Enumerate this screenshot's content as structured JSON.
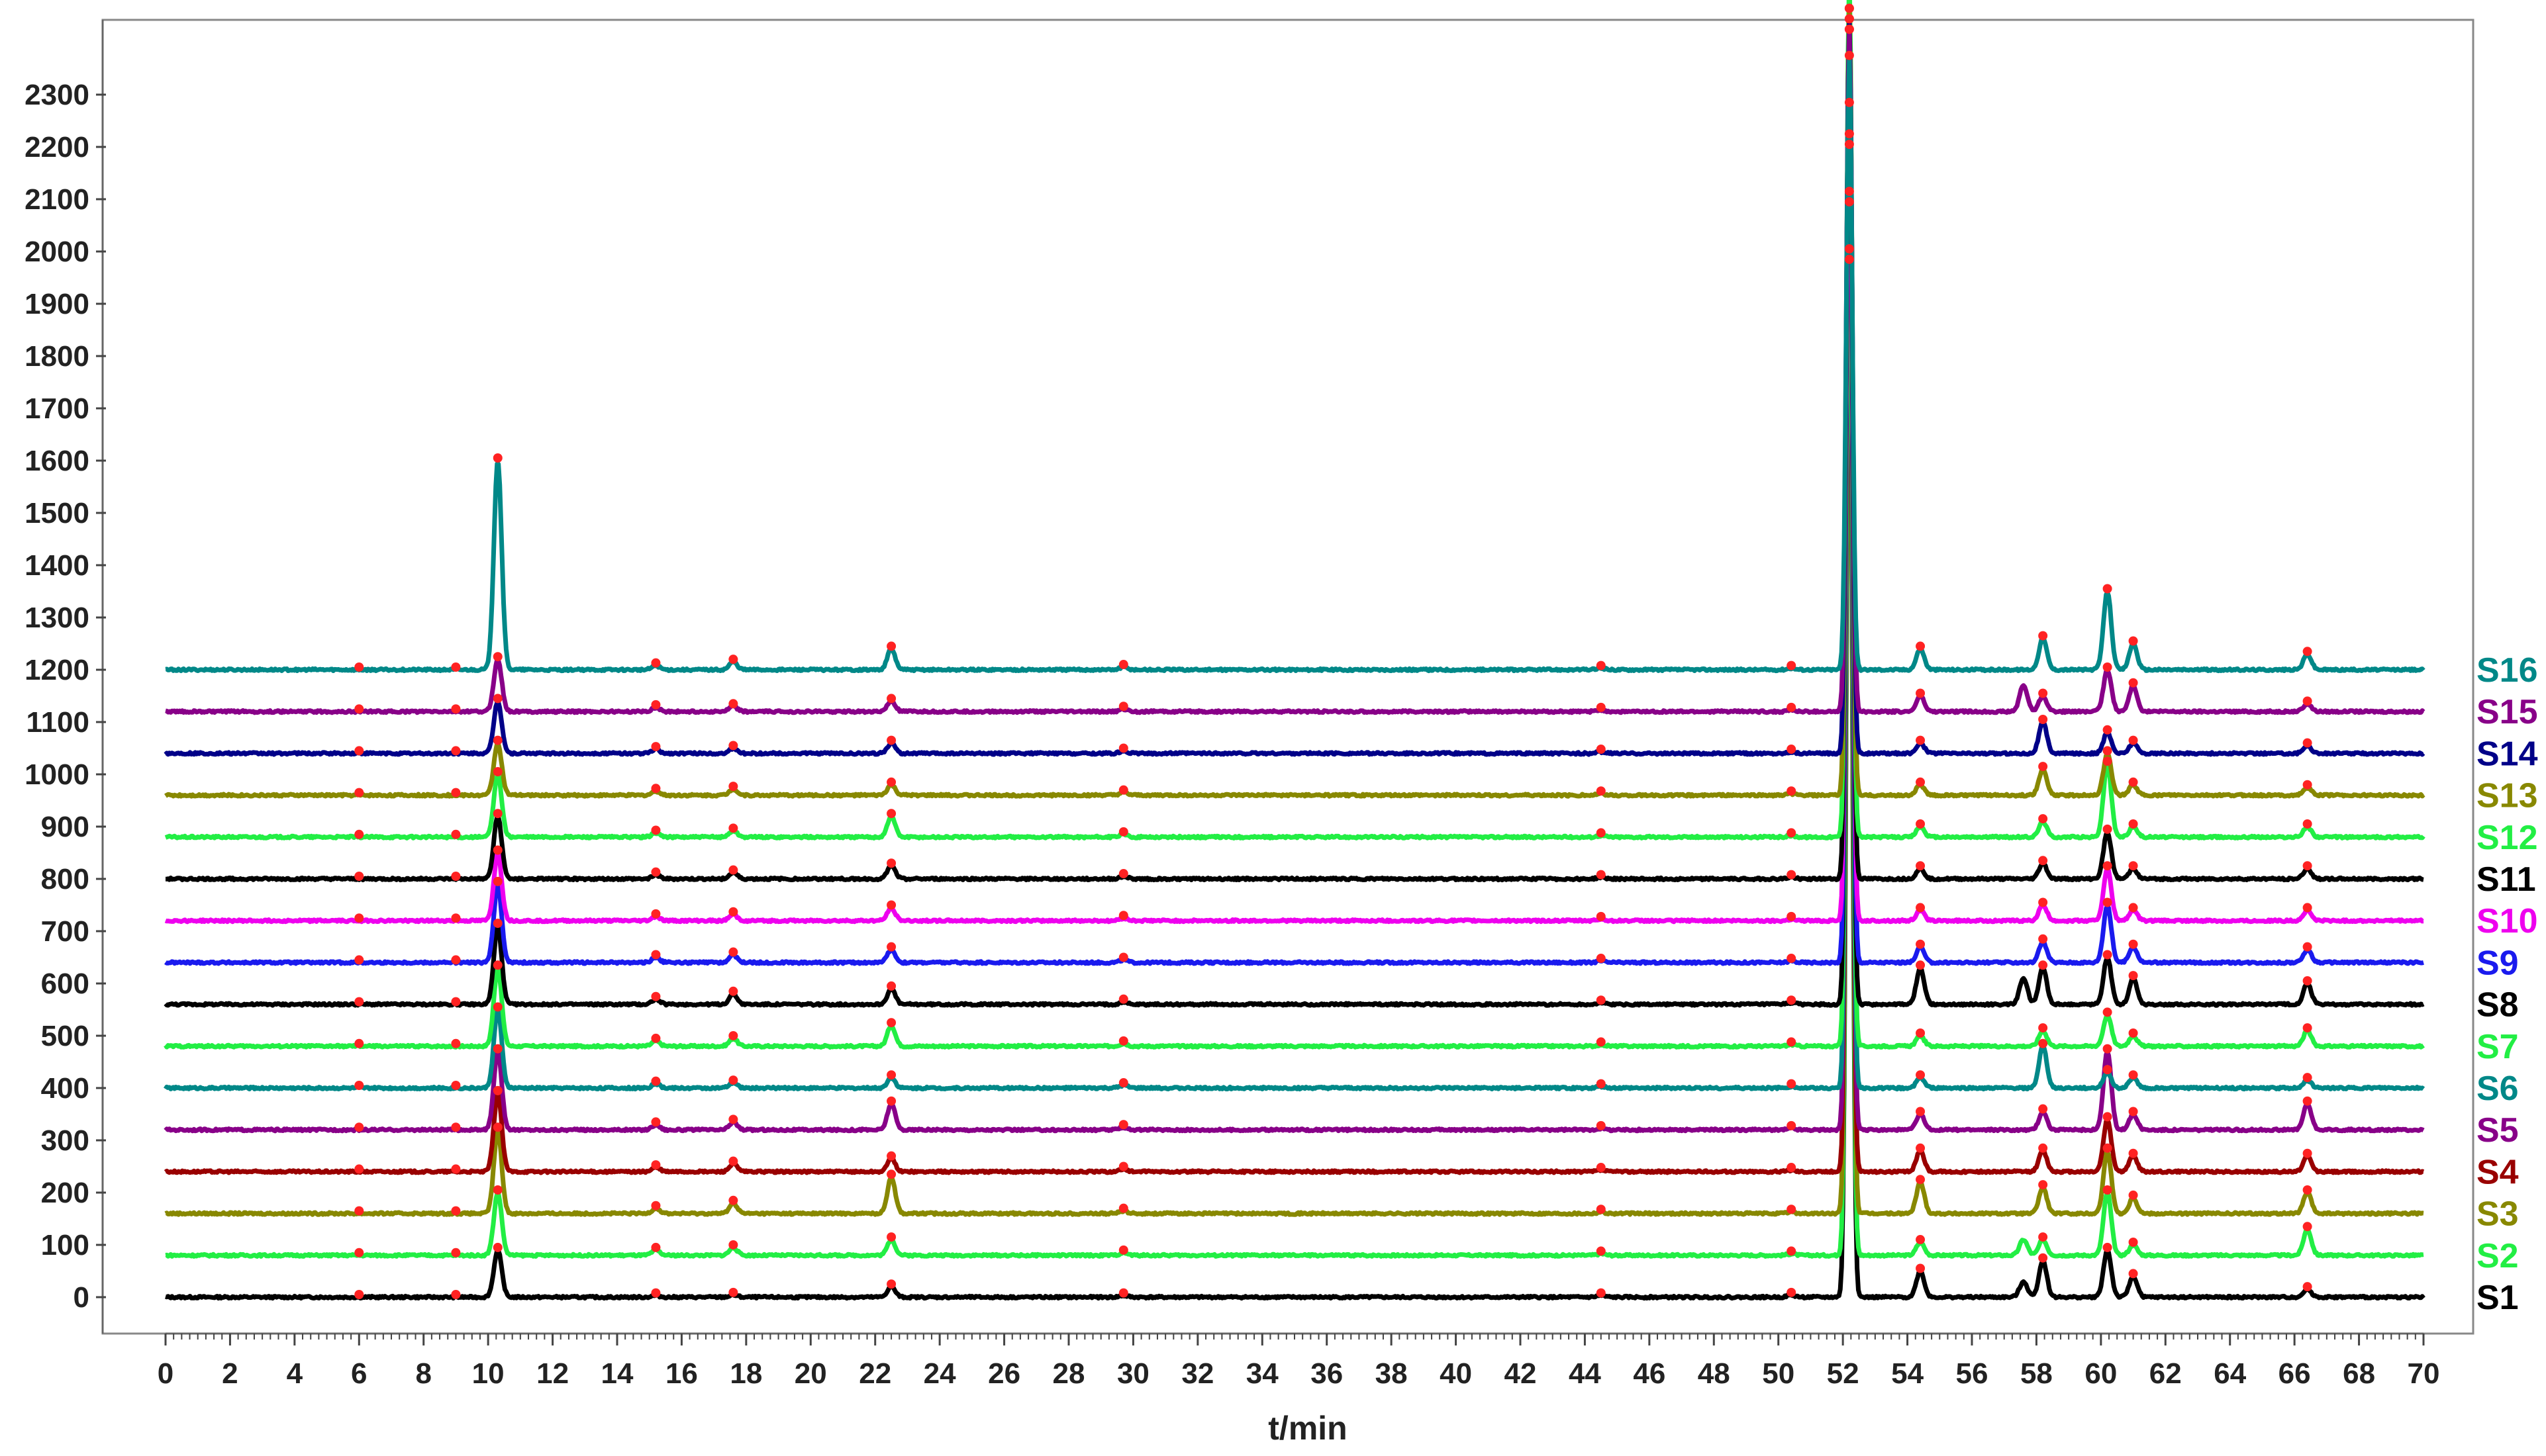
{
  "chart_data": {
    "type": "line",
    "title": "",
    "xlabel": "t/min",
    "ylabel": "",
    "xlim": [
      0,
      70
    ],
    "ylim": [
      -50,
      2400
    ],
    "x_ticks": [
      0,
      2,
      4,
      6,
      8,
      10,
      12,
      14,
      16,
      18,
      20,
      22,
      24,
      26,
      28,
      30,
      32,
      34,
      36,
      38,
      40,
      42,
      44,
      46,
      48,
      50,
      52,
      54,
      56,
      58,
      60,
      62,
      64,
      66,
      68,
      70
    ],
    "y_ticks": [
      0,
      100,
      200,
      300,
      400,
      500,
      600,
      700,
      800,
      900,
      1000,
      1100,
      1200,
      1300,
      1400,
      1500,
      1600,
      1700,
      1800,
      1900,
      2000,
      2100,
      2200,
      2300
    ],
    "grid": false,
    "legend_position": "right, stacked beside traces",
    "marker_times": [
      6.0,
      9.0,
      10.3,
      15.2,
      17.6,
      22.5,
      29.7,
      44.5,
      50.4,
      52.2,
      54.4,
      58.2,
      60.2,
      61.0,
      66.4
    ],
    "series": [
      {
        "name": "S1",
        "color": "#000000",
        "baseline": 0,
        "peaks": [
          [
            10.3,
            90
          ],
          [
            15.2,
            3
          ],
          [
            17.6,
            4
          ],
          [
            22.5,
            20
          ],
          [
            29.7,
            3
          ],
          [
            44.5,
            3
          ],
          [
            50.4,
            4
          ],
          [
            52.2,
            2000
          ],
          [
            54.4,
            50
          ],
          [
            57.6,
            30
          ],
          [
            58.2,
            70
          ],
          [
            60.2,
            90
          ],
          [
            61.0,
            40
          ],
          [
            66.4,
            15
          ]
        ]
      },
      {
        "name": "S2",
        "color": "#22ee44",
        "baseline": 80,
        "peaks": [
          [
            10.3,
            120
          ],
          [
            15.2,
            10
          ],
          [
            17.6,
            15
          ],
          [
            22.5,
            30
          ],
          [
            29.7,
            5
          ],
          [
            44.5,
            3
          ],
          [
            50.4,
            3
          ],
          [
            52.2,
            1900
          ],
          [
            54.4,
            25
          ],
          [
            57.6,
            30
          ],
          [
            58.2,
            30
          ],
          [
            60.2,
            120
          ],
          [
            61.0,
            20
          ],
          [
            66.4,
            50
          ]
        ]
      },
      {
        "name": "S3",
        "color": "#888800",
        "baseline": 160,
        "peaks": [
          [
            10.3,
            160
          ],
          [
            15.2,
            10
          ],
          [
            17.6,
            20
          ],
          [
            22.5,
            70
          ],
          [
            29.7,
            5
          ],
          [
            44.5,
            3
          ],
          [
            50.4,
            3
          ],
          [
            52.2,
            1950
          ],
          [
            54.4,
            60
          ],
          [
            58.2,
            50
          ],
          [
            60.2,
            120
          ],
          [
            61.0,
            30
          ],
          [
            66.4,
            40
          ]
        ]
      },
      {
        "name": "S4",
        "color": "#990000",
        "baseline": 240,
        "peaks": [
          [
            10.3,
            150
          ],
          [
            15.2,
            8
          ],
          [
            17.6,
            15
          ],
          [
            22.5,
            25
          ],
          [
            29.7,
            5
          ],
          [
            44.5,
            3
          ],
          [
            50.4,
            3
          ],
          [
            52.2,
            1850
          ],
          [
            54.4,
            40
          ],
          [
            58.2,
            40
          ],
          [
            60.2,
            100
          ],
          [
            61.0,
            30
          ],
          [
            66.4,
            30
          ]
        ]
      },
      {
        "name": "S5",
        "color": "#880088",
        "baseline": 320,
        "peaks": [
          [
            10.3,
            150
          ],
          [
            15.2,
            10
          ],
          [
            17.6,
            15
          ],
          [
            22.5,
            50
          ],
          [
            29.7,
            5
          ],
          [
            44.5,
            3
          ],
          [
            50.4,
            3
          ],
          [
            52.2,
            1900
          ],
          [
            54.4,
            30
          ],
          [
            58.2,
            35
          ],
          [
            60.2,
            150
          ],
          [
            61.0,
            30
          ],
          [
            66.4,
            50
          ]
        ]
      },
      {
        "name": "S6",
        "color": "#008888",
        "baseline": 400,
        "peaks": [
          [
            10.3,
            150
          ],
          [
            15.2,
            8
          ],
          [
            17.6,
            10
          ],
          [
            22.5,
            20
          ],
          [
            29.7,
            5
          ],
          [
            44.5,
            3
          ],
          [
            50.4,
            3
          ],
          [
            52.2,
            1800
          ],
          [
            54.4,
            20
          ],
          [
            58.2,
            80
          ],
          [
            60.2,
            30
          ],
          [
            61.0,
            20
          ],
          [
            66.4,
            15
          ]
        ]
      },
      {
        "name": "S7",
        "color": "#22ee44",
        "baseline": 480,
        "peaks": [
          [
            10.3,
            150
          ],
          [
            15.2,
            10
          ],
          [
            17.6,
            15
          ],
          [
            22.5,
            40
          ],
          [
            29.7,
            5
          ],
          [
            44.5,
            3
          ],
          [
            50.4,
            3
          ],
          [
            52.2,
            1800
          ],
          [
            54.4,
            20
          ],
          [
            58.2,
            30
          ],
          [
            60.2,
            60
          ],
          [
            61.0,
            20
          ],
          [
            66.4,
            30
          ]
        ]
      },
      {
        "name": "S8",
        "color": "#000000",
        "baseline": 560,
        "peaks": [
          [
            10.3,
            150
          ],
          [
            15.2,
            10
          ],
          [
            17.6,
            20
          ],
          [
            22.5,
            30
          ],
          [
            29.7,
            5
          ],
          [
            44.5,
            3
          ],
          [
            50.4,
            3
          ],
          [
            52.2,
            1900
          ],
          [
            54.4,
            70
          ],
          [
            57.6,
            50
          ],
          [
            58.2,
            70
          ],
          [
            60.2,
            90
          ],
          [
            61.0,
            50
          ],
          [
            66.4,
            40
          ]
        ]
      },
      {
        "name": "S9",
        "color": "#1a1aee",
        "baseline": 640,
        "peaks": [
          [
            10.3,
            150
          ],
          [
            15.2,
            10
          ],
          [
            17.6,
            15
          ],
          [
            22.5,
            25
          ],
          [
            29.7,
            5
          ],
          [
            44.5,
            3
          ],
          [
            50.4,
            3
          ],
          [
            52.2,
            1800
          ],
          [
            54.4,
            30
          ],
          [
            58.2,
            40
          ],
          [
            60.2,
            110
          ],
          [
            61.0,
            30
          ],
          [
            66.4,
            25
          ]
        ]
      },
      {
        "name": "S10",
        "color": "#ee00ee",
        "baseline": 720,
        "peaks": [
          [
            10.3,
            130
          ],
          [
            15.2,
            8
          ],
          [
            17.6,
            12
          ],
          [
            22.5,
            25
          ],
          [
            29.7,
            5
          ],
          [
            44.5,
            3
          ],
          [
            50.4,
            3
          ],
          [
            52.2,
            1700
          ],
          [
            54.4,
            20
          ],
          [
            58.2,
            30
          ],
          [
            60.2,
            100
          ],
          [
            61.0,
            20
          ],
          [
            66.4,
            20
          ]
        ]
      },
      {
        "name": "S11",
        "color": "#000000",
        "baseline": 800,
        "peaks": [
          [
            10.3,
            120
          ],
          [
            15.2,
            8
          ],
          [
            17.6,
            12
          ],
          [
            22.5,
            25
          ],
          [
            29.7,
            5
          ],
          [
            44.5,
            3
          ],
          [
            50.4,
            3
          ],
          [
            52.2,
            1700
          ],
          [
            54.4,
            20
          ],
          [
            58.2,
            30
          ],
          [
            60.2,
            90
          ],
          [
            61.0,
            20
          ],
          [
            66.4,
            20
          ]
        ]
      },
      {
        "name": "S12",
        "color": "#22ee44",
        "baseline": 880,
        "peaks": [
          [
            10.3,
            120
          ],
          [
            15.2,
            8
          ],
          [
            17.6,
            12
          ],
          [
            22.5,
            40
          ],
          [
            29.7,
            5
          ],
          [
            44.5,
            3
          ],
          [
            50.4,
            3
          ],
          [
            52.2,
            1650
          ],
          [
            54.4,
            20
          ],
          [
            58.2,
            30
          ],
          [
            60.2,
            140
          ],
          [
            61.0,
            20
          ],
          [
            66.4,
            20
          ]
        ]
      },
      {
        "name": "S13",
        "color": "#888800",
        "baseline": 960,
        "peaks": [
          [
            10.3,
            100
          ],
          [
            15.2,
            8
          ],
          [
            17.6,
            12
          ],
          [
            22.5,
            20
          ],
          [
            29.7,
            5
          ],
          [
            44.5,
            3
          ],
          [
            50.4,
            3
          ],
          [
            52.2,
            1500
          ],
          [
            54.4,
            20
          ],
          [
            58.2,
            50
          ],
          [
            60.2,
            80
          ],
          [
            61.0,
            20
          ],
          [
            66.4,
            15
          ]
        ]
      },
      {
        "name": "S14",
        "color": "#000088",
        "baseline": 1040,
        "peaks": [
          [
            10.3,
            100
          ],
          [
            15.2,
            8
          ],
          [
            17.6,
            10
          ],
          [
            22.5,
            20
          ],
          [
            29.7,
            5
          ],
          [
            44.5,
            3
          ],
          [
            50.4,
            3
          ],
          [
            52.2,
            1400
          ],
          [
            54.4,
            20
          ],
          [
            58.2,
            60
          ],
          [
            60.2,
            40
          ],
          [
            61.0,
            20
          ],
          [
            66.4,
            15
          ]
        ]
      },
      {
        "name": "S15",
        "color": "#880088",
        "baseline": 1120,
        "peaks": [
          [
            10.3,
            100
          ],
          [
            15.2,
            8
          ],
          [
            17.6,
            10
          ],
          [
            22.5,
            20
          ],
          [
            29.7,
            5
          ],
          [
            44.5,
            3
          ],
          [
            50.4,
            3
          ],
          [
            52.2,
            1300
          ],
          [
            54.4,
            30
          ],
          [
            57.6,
            50
          ],
          [
            58.2,
            30
          ],
          [
            60.2,
            80
          ],
          [
            61.0,
            50
          ],
          [
            66.4,
            15
          ]
        ]
      },
      {
        "name": "S16",
        "color": "#008888",
        "baseline": 1200,
        "peaks": [
          [
            10.3,
            400
          ],
          [
            15.2,
            8
          ],
          [
            17.6,
            15
          ],
          [
            22.5,
            40
          ],
          [
            29.7,
            5
          ],
          [
            44.5,
            3
          ],
          [
            50.4,
            3
          ],
          [
            52.2,
            1170
          ],
          [
            54.4,
            40
          ],
          [
            58.2,
            60
          ],
          [
            60.2,
            150
          ],
          [
            61.0,
            50
          ],
          [
            66.4,
            30
          ]
        ]
      }
    ]
  }
}
